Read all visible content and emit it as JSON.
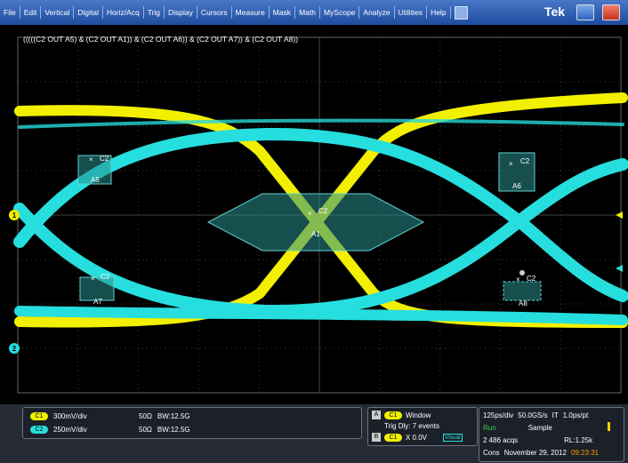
{
  "menu": {
    "items": [
      "File",
      "Edit",
      "Vertical",
      "Digital",
      "Horiz/Acq",
      "Trig",
      "Display",
      "Cursors",
      "Measure",
      "Mask",
      "Math",
      "MyScope",
      "Analyze",
      "Utilities",
      "Help"
    ],
    "logo": "Tek"
  },
  "screen": {
    "mask_expression": "(((((C2 OUT A5) & (C2 OUT A1)) & (C2 OUT A6)) & (C2 OUT A7)) & (C2 OUT A8))",
    "masks": [
      {
        "label": "A5",
        "channel": "C2"
      },
      {
        "label": "A6",
        "channel": "C2"
      },
      {
        "label": "A1",
        "channel": "C2"
      },
      {
        "label": "A7",
        "channel": "C2"
      },
      {
        "label": "A8",
        "channel": "C2"
      }
    ],
    "markers": [
      "1",
      "2"
    ]
  },
  "status": {
    "channels": [
      {
        "badge": "C1",
        "scale": "300mV/div",
        "impedance": "50Ω",
        "bandwidth": "BW:12.5G"
      },
      {
        "badge": "C2",
        "scale": "250mV/div",
        "impedance": "50Ω",
        "bandwidth": "BW:12.5G"
      }
    ],
    "trigger": {
      "a_badge": "A",
      "a_channel": "C1",
      "a_type": "Window",
      "delay": "Trig Dly: 7 events",
      "b_badge": "B",
      "b_channel": "C1",
      "b_level": "X 0.0V",
      "mode": "Visual"
    },
    "acquisition": {
      "timebase": "125ps/div",
      "rate": "50.0GS/s",
      "it": "IT",
      "resolution": "1.0ps/pt",
      "state": "Run",
      "mode": "Sample",
      "acqs": "2 486 acqs",
      "record": "RL:1.25k",
      "label": "Cons",
      "date": "November 29, 2012",
      "time": "09:23:31"
    }
  }
}
